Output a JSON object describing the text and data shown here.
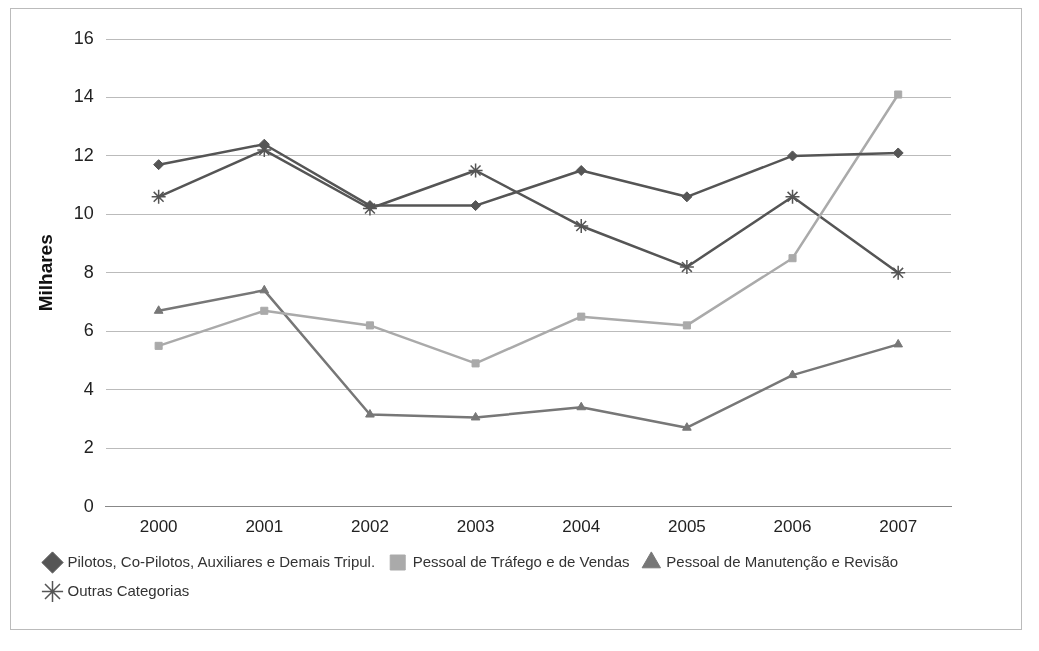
{
  "chart_data": {
    "type": "line",
    "ylabel": "Milhares",
    "categories": [
      "2000",
      "2001",
      "2002",
      "2003",
      "2004",
      "2005",
      "2006",
      "2007"
    ],
    "series": [
      {
        "name": "Pilotos, Co-Pilotos, Auxiliares e Demais Tripul.",
        "color": "#555555",
        "marker": "diamond",
        "values": [
          11.7,
          12.4,
          10.3,
          10.3,
          11.5,
          10.6,
          12.0,
          12.1
        ]
      },
      {
        "name": "Pessoal de Tráfego e de Vendas",
        "color": "#aaaaaa",
        "marker": "square",
        "values": [
          5.5,
          6.7,
          6.2,
          4.9,
          6.5,
          6.2,
          8.5,
          14.1
        ]
      },
      {
        "name": "Pessoal de Manutenção e Revisão",
        "color": "#777777",
        "marker": "triangle",
        "values": [
          6.7,
          7.4,
          3.15,
          3.05,
          3.4,
          2.7,
          4.5,
          5.55
        ]
      },
      {
        "name": "Outras Categorias",
        "color": "#555555",
        "marker": "cross",
        "values": [
          10.6,
          12.2,
          10.2,
          11.5,
          9.6,
          8.2,
          10.6,
          8.0
        ]
      }
    ],
    "ylim": [
      0,
      16
    ],
    "yticks": [
      0,
      2,
      4,
      6,
      8,
      10,
      12,
      14,
      16
    ],
    "grid": "y",
    "legend": "bottom"
  }
}
